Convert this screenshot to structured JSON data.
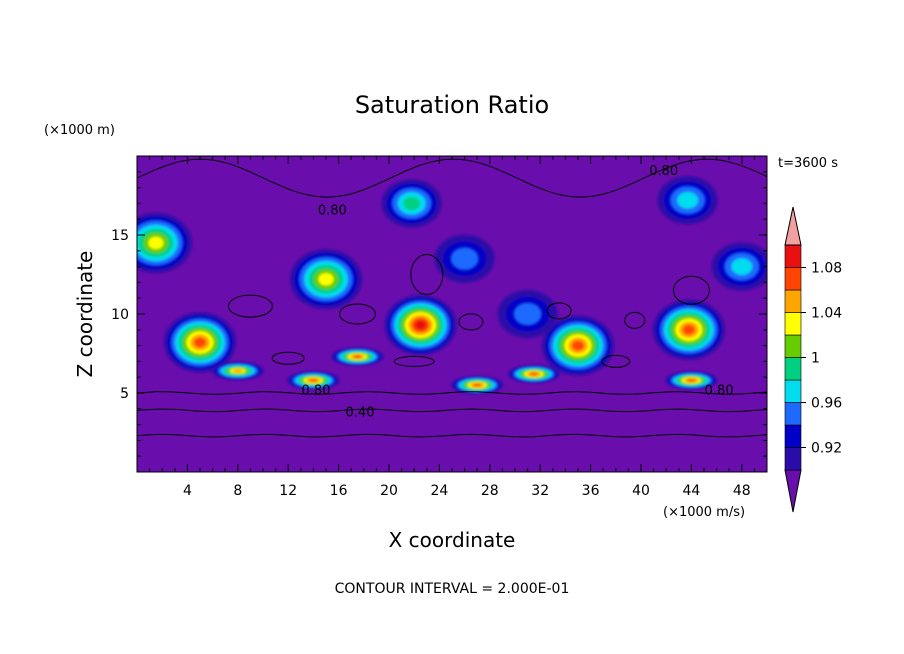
{
  "chart_data": {
    "type": "heatmap",
    "title": "Saturation Ratio",
    "xlabel": "X coordinate",
    "ylabel": "Z coordinate",
    "x_units": "(×1000 m/s)",
    "y_units": "(×1000 m)",
    "time_label": "t=3600 s",
    "footer": "CONTOUR INTERVAL = 2.000E-01",
    "xlim": [
      0,
      50
    ],
    "ylim": [
      0,
      20
    ],
    "x_ticks": [
      4,
      8,
      12,
      16,
      20,
      24,
      28,
      32,
      36,
      40,
      44,
      48
    ],
    "y_ticks": [
      5,
      10,
      15
    ],
    "colorbar": {
      "levels": [
        "0.92",
        "0.96",
        "1",
        "1.04",
        "1.08"
      ],
      "colors": [
        "#6A0DAD",
        "#2A0CA8",
        "#0000C8",
        "#1E6AFF",
        "#00DDEE",
        "#00D080",
        "#66CC00",
        "#FFFF00",
        "#FFA500",
        "#FF4500",
        "#E81010",
        "#F3A0A0"
      ]
    },
    "contour_labels": [
      "0.80",
      "0.80",
      "0.80",
      "0.80",
      "0.40"
    ],
    "contours": [
      {
        "level": 0.8,
        "z": 18.6,
        "label": "0.80"
      },
      {
        "level": 0.8,
        "z": 5.0,
        "label": "0.80"
      },
      {
        "level": 0.4,
        "z": 3.9,
        "label": "0.40"
      },
      {
        "level": 0.2,
        "z": 2.3,
        "label": ""
      }
    ],
    "blobs": [
      {
        "x": 1.5,
        "z": 14.5,
        "peak": 1.02
      },
      {
        "x": 15.0,
        "z": 12.2,
        "peak": 1.03
      },
      {
        "x": 21.8,
        "z": 17.0,
        "peak": 0.99
      },
      {
        "x": 43.7,
        "z": 17.2,
        "peak": 0.97
      },
      {
        "x": 5.0,
        "z": 8.2,
        "peak": 1.07
      },
      {
        "x": 22.5,
        "z": 9.3,
        "peak": 1.09
      },
      {
        "x": 43.8,
        "z": 9.0,
        "peak": 1.07
      },
      {
        "x": 35.0,
        "z": 8.0,
        "peak": 1.06
      },
      {
        "x": 14.0,
        "z": 5.8,
        "peak": 1.07
      },
      {
        "x": 27.0,
        "z": 5.5,
        "peak": 1.06
      },
      {
        "x": 31.5,
        "z": 6.2,
        "peak": 1.06
      },
      {
        "x": 8.0,
        "z": 6.4,
        "peak": 1.04
      },
      {
        "x": 17.5,
        "z": 7.3,
        "peak": 1.06
      },
      {
        "x": 44.0,
        "z": 5.8,
        "peak": 1.06
      },
      {
        "x": 26.0,
        "z": 13.5,
        "peak": 0.95
      },
      {
        "x": 31.0,
        "z": 10.0,
        "peak": 0.94
      },
      {
        "x": 48.0,
        "z": 13.0,
        "peak": 0.96
      }
    ]
  }
}
